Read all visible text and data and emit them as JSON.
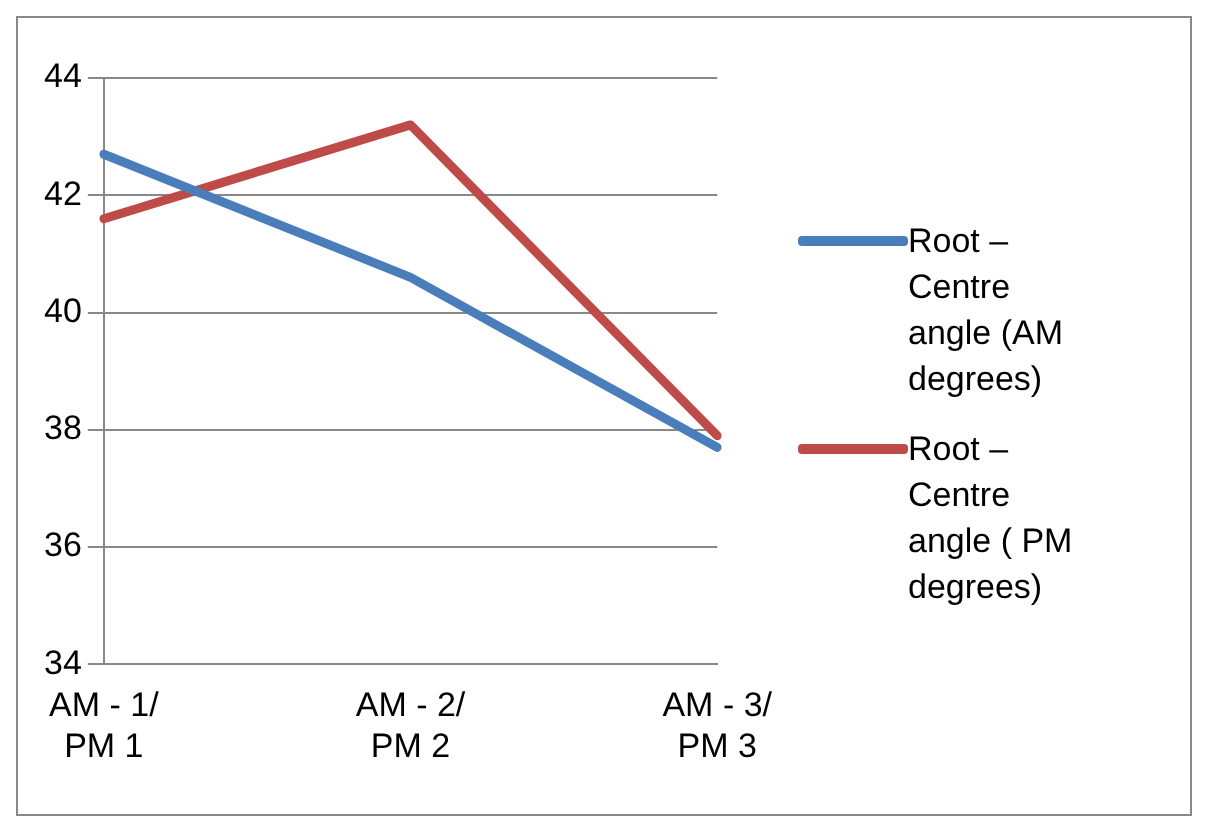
{
  "chart_data": {
    "type": "line",
    "categories": [
      "AM - 1/PM 1",
      "AM - 2/PM 2",
      "AM - 3/PM 3"
    ],
    "series": [
      {
        "name": "Root – Centre angle (AM degrees)",
        "color": "#4a7ebb",
        "values": [
          42.7,
          40.6,
          37.7
        ]
      },
      {
        "name": "Root – Centre angle ( PM degrees)",
        "color": "#be4b48",
        "values": [
          41.6,
          43.2,
          37.9
        ]
      }
    ],
    "ylim": [
      34,
      44
    ],
    "yticks": [
      34,
      36,
      38,
      40,
      42,
      44
    ],
    "grid": "y",
    "legend": "right",
    "marker": "none",
    "line_style": "solid"
  }
}
